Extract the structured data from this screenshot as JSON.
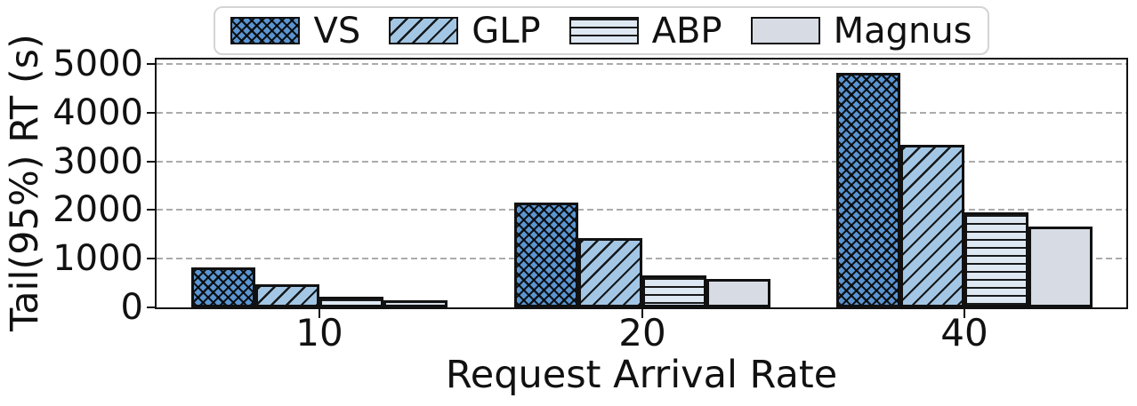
{
  "chart_data": {
    "type": "bar",
    "title": "",
    "xlabel": "Request Arrival Rate",
    "ylabel": "Tail(95%) RT (s)",
    "categories": [
      "10",
      "20",
      "40"
    ],
    "series": [
      {
        "name": "VS",
        "values": [
          820,
          2150,
          4820
        ],
        "fill": "#5b95d1",
        "hatch": "xx"
      },
      {
        "name": "GLP",
        "values": [
          470,
          1430,
          3330
        ],
        "fill": "#a3c6e4",
        "hatch": "//"
      },
      {
        "name": "ABP",
        "values": [
          225,
          665,
          1950
        ],
        "fill": "#dde8f3",
        "hatch": "--"
      },
      {
        "name": "Magnus",
        "values": [
          150,
          575,
          1660
        ],
        "fill": "#d6dbe4",
        "hatch": ""
      }
    ],
    "ylim": [
      0,
      5090
    ],
    "yticks": [
      0,
      1000,
      2000,
      3000,
      4000,
      5000
    ],
    "grid": "horizontal dashed",
    "legend_position": "top center",
    "bar_edge_color": "#111111",
    "gridline_color": "#ababab"
  }
}
